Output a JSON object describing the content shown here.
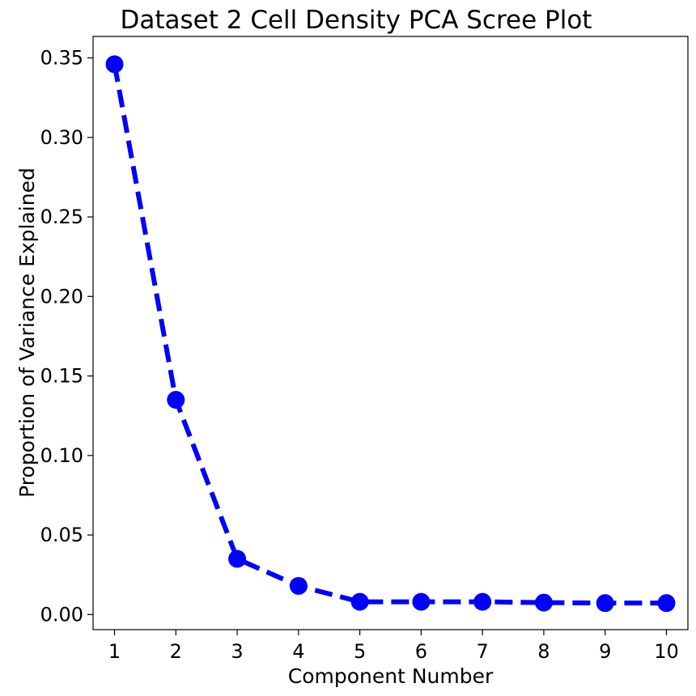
{
  "chart_data": {
    "type": "line",
    "title": "Dataset 2 Cell Density PCA Scree Plot",
    "xlabel": "Component Number",
    "ylabel": "Proportion of Variance Explained",
    "x": [
      1,
      2,
      3,
      4,
      5,
      6,
      7,
      8,
      9,
      10
    ],
    "series": [
      {
        "values": [
          0.346,
          0.135,
          0.035,
          0.018,
          0.008,
          0.008,
          0.008,
          0.0075,
          0.0072,
          0.0072
        ],
        "color": "#0000ff",
        "line_style": "dashed",
        "marker": "circle"
      }
    ],
    "xticks": [
      "1",
      "2",
      "3",
      "4",
      "5",
      "6",
      "7",
      "8",
      "9",
      "10"
    ],
    "yticks": [
      "0.00",
      "0.05",
      "0.10",
      "0.15",
      "0.20",
      "0.25",
      "0.30",
      "0.35"
    ],
    "xlim": [
      0.65,
      10.35
    ],
    "ylim": [
      -0.0095,
      0.3635
    ],
    "grid": false,
    "legend": "none"
  }
}
